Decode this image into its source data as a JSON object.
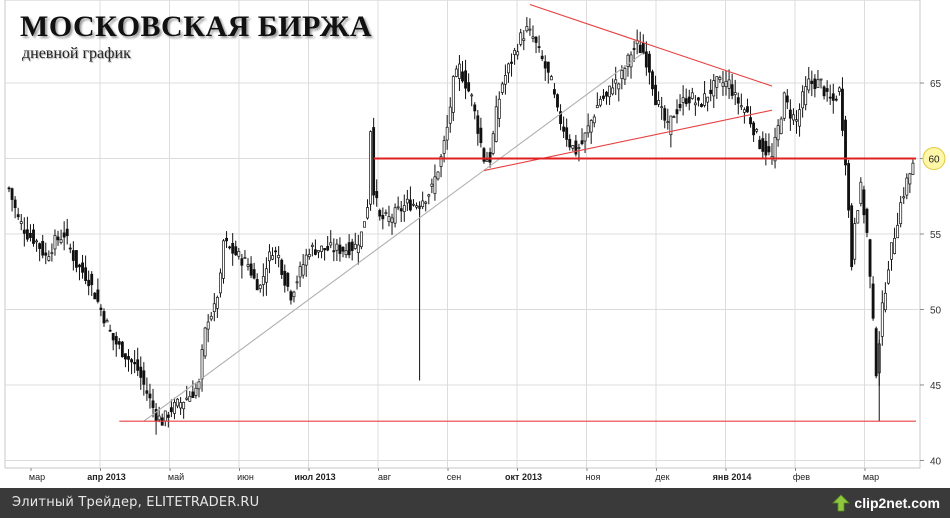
{
  "chart_data": {
    "type": "candlestick",
    "title": "МОСКОВСКАЯ БИРЖА",
    "subtitle": "дневной график",
    "x_tick_labels": [
      "мар",
      "апр 2013",
      "май",
      "июн",
      "июл 2013",
      "авг",
      "сен",
      "окт 2013",
      "ноя",
      "дек",
      "янв 2014",
      "фев",
      "мар"
    ],
    "x_tick_bold": [
      false,
      true,
      false,
      false,
      true,
      false,
      false,
      true,
      false,
      false,
      true,
      false,
      false
    ],
    "y_ticks": [
      40,
      45,
      50,
      55,
      60,
      65
    ],
    "ylim": [
      39.5,
      70.5
    ],
    "grid": true,
    "highlighted_level": 60,
    "highlighted_level_label": "60",
    "price_path": [
      [
        0,
        58
      ],
      [
        3,
        56
      ],
      [
        6,
        55
      ],
      [
        9,
        54.5
      ],
      [
        12,
        53.5
      ],
      [
        15,
        54.5
      ],
      [
        18,
        55
      ],
      [
        22,
        53
      ],
      [
        26,
        52
      ],
      [
        30,
        50
      ],
      [
        34,
        48
      ],
      [
        38,
        47
      ],
      [
        42,
        46
      ],
      [
        46,
        44
      ],
      [
        48,
        43
      ],
      [
        50,
        42.6
      ],
      [
        53,
        43.4
      ],
      [
        57,
        44
      ],
      [
        60,
        44.5
      ],
      [
        62,
        45
      ],
      [
        63,
        47
      ],
      [
        64,
        48.5
      ],
      [
        65,
        49.5
      ],
      [
        67,
        50
      ],
      [
        69,
        52
      ],
      [
        70,
        54.5
      ],
      [
        72,
        54
      ],
      [
        75,
        53.5
      ],
      [
        78,
        53
      ],
      [
        80,
        52
      ],
      [
        82,
        51.5
      ],
      [
        84,
        53
      ],
      [
        86,
        54
      ],
      [
        88,
        53.5
      ],
      [
        90,
        52
      ],
      [
        92,
        51
      ],
      [
        94,
        52
      ],
      [
        96,
        53
      ],
      [
        98,
        54
      ],
      [
        101,
        54
      ],
      [
        104,
        54
      ],
      [
        107,
        54
      ],
      [
        110,
        54
      ],
      [
        113,
        54.2
      ],
      [
        115,
        55
      ],
      [
        117,
        57
      ],
      [
        118,
        62
      ],
      [
        119,
        58
      ],
      [
        121,
        56
      ],
      [
        124,
        56
      ],
      [
        127,
        56.5
      ],
      [
        130,
        57
      ],
      [
        133,
        57
      ],
      [
        136,
        57.5
      ],
      [
        138,
        58
      ],
      [
        141,
        60
      ],
      [
        143,
        62
      ],
      [
        145,
        65
      ],
      [
        147,
        66
      ],
      [
        149,
        65
      ],
      [
        151,
        64
      ],
      [
        153,
        62
      ],
      [
        155,
        60
      ],
      [
        157,
        60
      ],
      [
        159,
        63
      ],
      [
        161,
        65
      ],
      [
        163,
        66
      ],
      [
        165,
        67
      ],
      [
        167,
        68
      ],
      [
        169,
        68.5
      ],
      [
        171,
        68
      ],
      [
        173,
        67
      ],
      [
        175,
        66
      ],
      [
        177,
        65
      ],
      [
        179,
        63
      ],
      [
        181,
        62
      ],
      [
        183,
        61
      ],
      [
        185,
        60.5
      ],
      [
        187,
        61
      ],
      [
        189,
        62
      ],
      [
        191,
        63
      ],
      [
        193,
        64
      ],
      [
        195,
        64
      ],
      [
        197,
        65
      ],
      [
        199,
        65
      ],
      [
        201,
        66
      ],
      [
        203,
        67
      ],
      [
        205,
        67.5
      ],
      [
        207,
        67
      ],
      [
        209,
        66
      ],
      [
        211,
        64
      ],
      [
        213,
        63
      ],
      [
        215,
        62
      ],
      [
        217,
        63
      ],
      [
        219,
        63.5
      ],
      [
        221,
        64
      ],
      [
        223,
        64
      ],
      [
        225,
        63.5
      ],
      [
        227,
        64
      ],
      [
        229,
        64.5
      ],
      [
        231,
        65
      ],
      [
        233,
        65
      ],
      [
        235,
        65
      ],
      [
        237,
        64
      ],
      [
        239,
        63.5
      ],
      [
        241,
        63
      ],
      [
        243,
        62
      ],
      [
        245,
        61
      ],
      [
        247,
        60.5
      ],
      [
        249,
        60
      ],
      [
        251,
        62
      ],
      [
        253,
        64
      ],
      [
        255,
        63
      ],
      [
        257,
        62.5
      ],
      [
        259,
        64
      ],
      [
        261,
        65
      ],
      [
        263,
        65
      ],
      [
        265,
        65
      ],
      [
        267,
        64
      ],
      [
        269,
        63.8
      ],
      [
        271,
        64.5
      ],
      [
        273,
        60
      ],
      [
        275,
        53
      ],
      [
        276,
        56
      ],
      [
        278,
        58
      ],
      [
        280,
        55
      ],
      [
        281,
        52
      ],
      [
        282,
        49
      ],
      [
        283,
        46
      ],
      [
        284,
        48
      ],
      [
        285,
        50
      ],
      [
        287,
        53
      ],
      [
        289,
        55
      ],
      [
        291,
        57
      ],
      [
        293,
        58.5
      ],
      [
        295,
        59.5
      ]
    ],
    "price_count": 296,
    "trend_lines": [
      {
        "name": "support-uptrend",
        "color": "#b0b0b0",
        "points": [
          [
            44,
            42.6
          ],
          [
            207,
            67
          ]
        ]
      },
      {
        "name": "resistance-downtrend",
        "color": "#e84040",
        "points": [
          [
            170,
            70.2
          ],
          [
            249,
            64.8
          ]
        ]
      },
      {
        "name": "support-triangle",
        "color": "#e84040",
        "points": [
          [
            155,
            59.2
          ],
          [
            249,
            63.2
          ]
        ]
      },
      {
        "name": "level-60",
        "color": "#e02020",
        "points": [
          [
            119,
            60
          ],
          [
            296,
            60
          ]
        ]
      },
      {
        "name": "level-42.6",
        "color": "#e84040",
        "points": [
          [
            36,
            42.6
          ],
          [
            296,
            42.6
          ]
        ]
      }
    ]
  },
  "footer": {
    "caption": "Элитный Трейдер, ELITETRADER.RU",
    "logo": "clip2net.com"
  }
}
